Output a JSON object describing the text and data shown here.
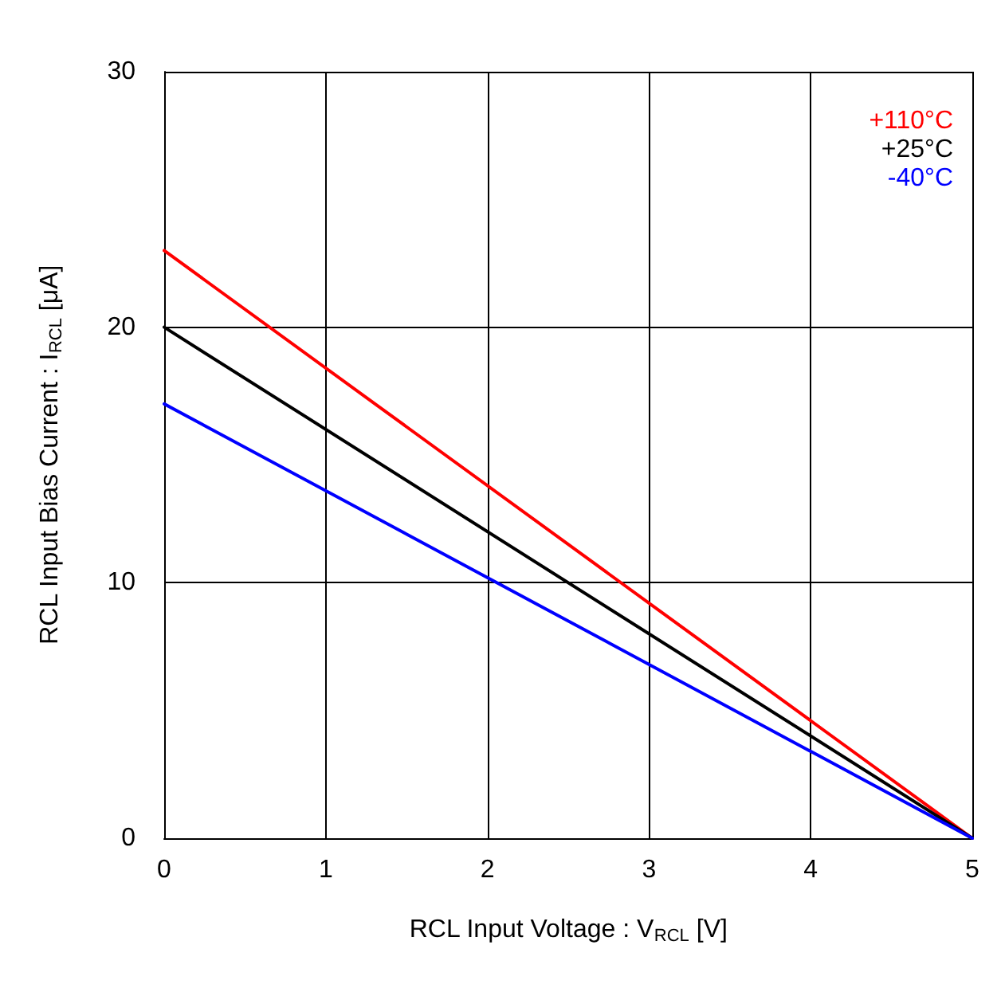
{
  "chart_data": {
    "type": "line",
    "xlabel": "RCL Input Voltage : V$_{RCL}$ [V]",
    "ylabel": "RCL Input Bias Current : I$_{RCL}$ [μA]",
    "x": [
      0,
      5
    ],
    "series": [
      {
        "name": "+110°C",
        "color": "#ff0000",
        "values": [
          23,
          0
        ]
      },
      {
        "name": "+25°C",
        "color": "#000000",
        "values": [
          20,
          0
        ]
      },
      {
        "name": "-40°C",
        "color": "#0000ff",
        "values": [
          17,
          0
        ]
      }
    ],
    "xlim": [
      0,
      5
    ],
    "xticks": [
      0,
      1,
      2,
      3,
      4,
      5
    ],
    "ylim": [
      0,
      30
    ],
    "yticks": [
      0,
      10,
      20,
      30
    ],
    "grid": true,
    "legend": "top right",
    "marker": "none",
    "line_style": "solid"
  }
}
